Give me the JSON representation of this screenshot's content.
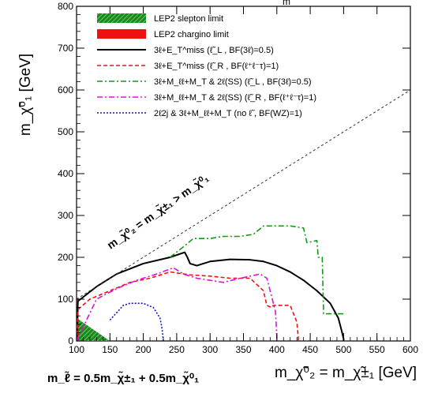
{
  "chart_data": {
    "type": "line",
    "xlabel": "m_χ̃⁰₂ = m_χ̃±₁ [GeV]",
    "ylabel": "m_χ̃⁰₁ [GeV]",
    "top_label": "m",
    "xlim": [
      100,
      600
    ],
    "ylim": [
      0,
      800
    ],
    "xticks": [
      100,
      150,
      200,
      250,
      300,
      350,
      400,
      450,
      500,
      550,
      600
    ],
    "yticks": [
      0,
      100,
      200,
      300,
      400,
      500,
      600,
      700,
      800
    ],
    "grid": false,
    "legend_position": "top-left",
    "diagonal_label": "m_χ̃⁰₂ = m_χ̃±₁ > m_χ̃⁰₁",
    "footnote": "m_ℓ̃ = 0.5m_χ̃±₁ + 0.5m_χ̃⁰₁",
    "regions": [
      {
        "name": "LEP2 slepton limit",
        "color": "#1a8a1a",
        "x": [
          100,
          100,
          150,
          100
        ],
        "y": [
          0,
          55,
          0,
          0
        ]
      },
      {
        "name": "LEP2 chargino limit",
        "color": "#ee1111",
        "x": [
          100,
          103,
          103,
          100
        ],
        "y": [
          0,
          0,
          100,
          100
        ]
      }
    ],
    "series": [
      {
        "name": "3ℓ+E_T^miss (ℓ̃_L , BF(3ℓ)=0.5)",
        "color": "#000000",
        "style": "solid",
        "width": 2,
        "x": [
          100,
          102,
          130,
          160,
          200,
          240,
          262,
          266,
          270,
          280,
          300,
          330,
          360,
          380,
          400,
          420,
          440,
          460,
          480,
          492,
          497,
          500,
          500
        ],
        "y": [
          0,
          95,
          130,
          160,
          185,
          200,
          212,
          200,
          185,
          180,
          190,
          195,
          194,
          190,
          180,
          165,
          145,
          120,
          90,
          55,
          25,
          5,
          0
        ]
      },
      {
        "name": "3ℓ+E_T^miss (ℓ̃_R , BF(ℓ⁺ℓ⁻τ)=1)",
        "color": "#ee1111",
        "style": "dashed",
        "width": 1.6,
        "x": [
          100,
          102,
          120,
          150,
          180,
          210,
          240,
          270,
          300,
          330,
          360,
          380,
          385,
          392,
          395,
          420,
          430,
          432,
          432
        ],
        "y": [
          0,
          75,
          100,
          120,
          140,
          150,
          165,
          158,
          155,
          150,
          150,
          120,
          85,
          80,
          85,
          85,
          45,
          10,
          0
        ]
      },
      {
        "name": "3ℓ+M_ℓℓ+M_T & 2ℓ(SS) (ℓ̃_L , BF(3ℓ)=0.5)",
        "color": "#119911",
        "style": "dashdot",
        "width": 1.6,
        "x": [
          240,
          260,
          275,
          300,
          320,
          345,
          365,
          380,
          420,
          440,
          445,
          460,
          462,
          468,
          470,
          500
        ],
        "y": [
          200,
          225,
          245,
          245,
          250,
          250,
          255,
          275,
          275,
          270,
          235,
          240,
          200,
          200,
          65,
          65
        ]
      },
      {
        "name": "3ℓ+M_ℓℓ+M_T & 2ℓ(SS) (ℓ̃_R , BF(ℓ⁺ℓ⁻τ)=1)",
        "color": "#dd11dd",
        "style": "dashdot",
        "width": 1.6,
        "x": [
          100,
          130,
          160,
          190,
          220,
          245,
          260,
          280,
          300,
          320,
          340,
          360,
          375,
          385,
          390,
          398,
          400,
          400
        ],
        "y": [
          0,
          100,
          125,
          145,
          160,
          175,
          160,
          150,
          145,
          140,
          148,
          155,
          160,
          150,
          120,
          70,
          10,
          0
        ]
      },
      {
        "name": "2ℓ2j & 3ℓ+M_ℓℓ+M_T (no ℓ̃ , BF(WZ)=1)",
        "color": "#1111cc",
        "style": "dotted",
        "width": 1.6,
        "x": [
          150,
          170,
          180,
          200,
          215,
          225,
          228,
          230
        ],
        "y": [
          50,
          85,
          90,
          90,
          80,
          55,
          30,
          0
        ]
      },
      {
        "name": "kinematic boundary",
        "color": "#333333",
        "style": "fine-dash",
        "width": 1,
        "x": [
          100,
          600
        ],
        "y": [
          100,
          600
        ]
      }
    ]
  }
}
